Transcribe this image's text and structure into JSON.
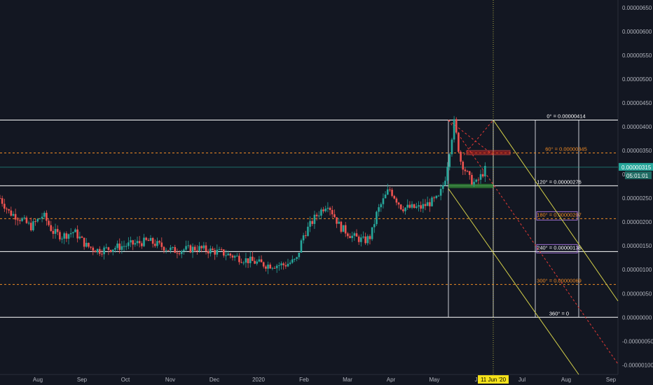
{
  "chart_data": {
    "type": "candlestick",
    "y_axis": {
      "ylim": [
        -1.2e-06,
        6.6e-06
      ],
      "ticks": [
        "0.00000650",
        "0.00000600",
        "0.00000550",
        "0.00000500",
        "0.00000450",
        "0.00000400",
        "0.00000350",
        "0.00000300",
        "0.00000250",
        "0.00000200",
        "0.00000150",
        "0.00000100",
        "0.00000050",
        "0.00000000",
        "-0.00000050",
        "-0.00000100"
      ],
      "tick_values": [
        6.5e-06,
        6e-06,
        5.5e-06,
        5e-06,
        4.5e-06,
        4e-06,
        3.5e-06,
        3e-06,
        2.5e-06,
        2e-06,
        1.5e-06,
        1e-06,
        5e-07,
        0,
        -5e-07,
        -1e-06
      ]
    },
    "x_axis": {
      "ticks": [
        "Aug",
        "Sep",
        "Oct",
        "Nov",
        "Dec",
        "2020",
        "Feb",
        "Mar",
        "Apr",
        "May",
        "Jun",
        "Jul",
        "Aug",
        "Sep"
      ],
      "cursor_label": "11 Jun '20"
    },
    "last_price_label": "0.00000315",
    "last_price": 3.15e-06,
    "countdown_label": "05:01:01",
    "levels": [
      {
        "label": "0° = 0.00000414",
        "value": 4.14e-06,
        "color": "#ffffff",
        "style": "solid"
      },
      {
        "label": "60° = 0.00000345",
        "value": 3.45e-06,
        "color": "#f08a24",
        "style": "dashed"
      },
      {
        "label": "120° = 0.00000276",
        "value": 2.76e-06,
        "color": "#ffffff",
        "style": "solid"
      },
      {
        "label": "180° = 0.00000207",
        "value": 2.07e-06,
        "color": "#f08a24",
        "style": "dashed"
      },
      {
        "label": "240° = 0.00000138",
        "value": 1.38e-06,
        "color": "#ffffff",
        "style": "solid"
      },
      {
        "label": "300° = 0.00000069",
        "value": 6.9e-07,
        "color": "#f08a24",
        "style": "dashed"
      },
      {
        "label": "360° = 0",
        "value": 0,
        "color": "#ffffff",
        "style": "solid"
      }
    ],
    "price_series": [
      [
        0,
        2.5e-06
      ],
      [
        0.015,
        2.2e-06
      ],
      [
        0.03,
        2.1e-06
      ],
      [
        0.05,
        1.9e-06
      ],
      [
        0.07,
        2.15e-06
      ],
      [
        0.085,
        1.8e-06
      ],
      [
        0.1,
        1.7e-06
      ],
      [
        0.12,
        1.8e-06
      ],
      [
        0.14,
        1.5e-06
      ],
      [
        0.16,
        1.4e-06
      ],
      [
        0.2,
        1.5e-06
      ],
      [
        0.24,
        1.6e-06
      ],
      [
        0.28,
        1.4e-06
      ],
      [
        0.32,
        1.45e-06
      ],
      [
        0.36,
        1.35e-06
      ],
      [
        0.4,
        1.2e-06
      ],
      [
        0.43,
        1.1e-06
      ],
      [
        0.46,
        1.1e-06
      ],
      [
        0.48,
        1.2e-06
      ],
      [
        0.49,
        1.7e-06
      ],
      [
        0.51,
        2.1e-06
      ],
      [
        0.53,
        2.4e-06
      ],
      [
        0.55,
        1.9e-06
      ],
      [
        0.57,
        1.7e-06
      ],
      [
        0.59,
        1.6e-06
      ],
      [
        0.6,
        1.7e-06
      ],
      [
        0.61,
        2.2e-06
      ],
      [
        0.63,
        2.7e-06
      ],
      [
        0.65,
        2.3e-06
      ],
      [
        0.68,
        2.3e-06
      ],
      [
        0.71,
        2.5e-06
      ],
      [
        0.72,
        2.9e-06
      ],
      [
        0.735,
        4.1e-06
      ],
      [
        0.745,
        3.3e-06
      ],
      [
        0.76,
        2.9e-06
      ],
      [
        0.77,
        2.8e-06
      ],
      [
        0.785,
        3.1e-06
      ]
    ]
  }
}
